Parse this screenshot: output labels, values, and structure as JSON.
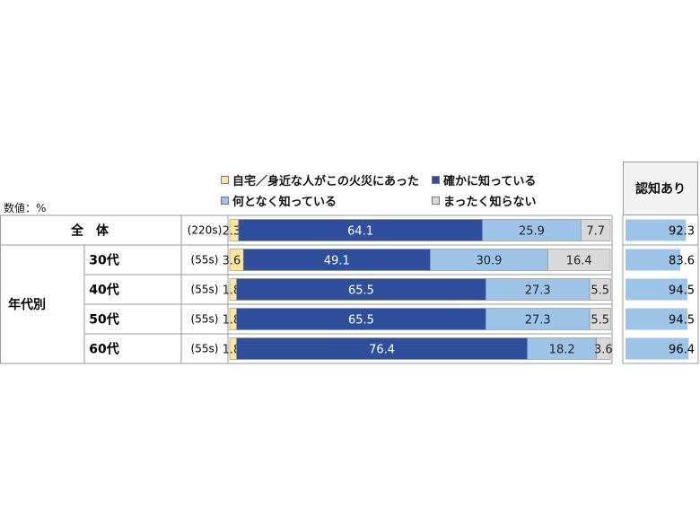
{
  "unit_label": "数値：%",
  "right_header": "認知あり",
  "colors": {
    "s1": "#ffe69a",
    "s2": "#2f4f9c",
    "s3": "#9dc3e6",
    "s4": "#d9d9d9",
    "right_bar": "#9dc3e6",
    "grid": "#9a9a9a"
  },
  "legend": [
    {
      "label": "自宅／身近な人がこの火災にあった",
      "color": "#ffe69a"
    },
    {
      "label": "確かに知っている",
      "color": "#2f4f9c"
    },
    {
      "label": "何となく知っている",
      "color": "#9dc3e6"
    },
    {
      "label": "まったく知らない",
      "color": "#d9d9d9"
    }
  ],
  "chart_data": {
    "type": "bar",
    "orientation": "horizontal",
    "stacked": true,
    "group_label": "年代別",
    "categories": [
      "全　体",
      "30代",
      "40代",
      "50代",
      "60代"
    ],
    "n": [
      "(220s)",
      "(55s)",
      "(55s)",
      "(55s)",
      "(55s)"
    ],
    "series": [
      {
        "name": "自宅／身近な人がこの火災にあった",
        "values": [
          2.3,
          3.6,
          1.8,
          1.8,
          1.8
        ]
      },
      {
        "name": "確かに知っている",
        "values": [
          64.1,
          49.1,
          65.5,
          65.5,
          76.4
        ]
      },
      {
        "name": "何となく知っている",
        "values": [
          25.9,
          30.9,
          27.3,
          27.3,
          18.2
        ]
      },
      {
        "name": "まったく知らない",
        "values": [
          7.7,
          16.4,
          5.5,
          5.5,
          3.6
        ]
      }
    ],
    "xlim": [
      0,
      100
    ],
    "right_values": {
      "name": "認知あり",
      "values": [
        92.3,
        83.6,
        94.5,
        94.5,
        96.4
      ],
      "xlim": [
        0,
        100
      ]
    }
  }
}
